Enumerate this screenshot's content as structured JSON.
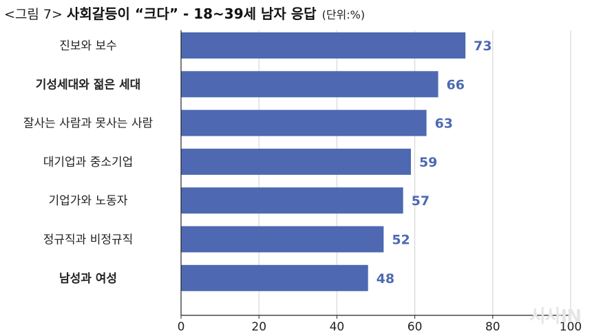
{
  "header": {
    "prefix": "<그림 7>",
    "title": "사회갈등이 “크다” - 18~39세 남자 응답",
    "unit": "(단위:%)"
  },
  "watermark": "시사IN",
  "colors": {
    "bar": "#4e69b1",
    "value_label": "#4e69b1",
    "grid": "#cfcfcf",
    "axis": "#222222"
  },
  "chart_data": {
    "type": "bar",
    "orientation": "horizontal",
    "title": "사회갈등이 “크다” - 18~39세 남자 응답",
    "unit": "(단위:%)",
    "categories": [
      "진보와 보수",
      "기성세대와 젊은 세대",
      "잘사는 사람과 못사는 사람",
      "대기업과 중소기업",
      "기업가와 노동자",
      "정규직과 비정규직",
      "남성과 여성"
    ],
    "values": [
      73,
      66,
      63,
      59,
      57,
      52,
      48
    ],
    "bold_categories": [
      "기성세대와 젊은 세대",
      "남성과 여성"
    ],
    "xlim": [
      0,
      100
    ],
    "xticks": [
      0,
      20,
      40,
      60,
      80,
      100
    ],
    "grid": "vertical",
    "legend": "none"
  }
}
